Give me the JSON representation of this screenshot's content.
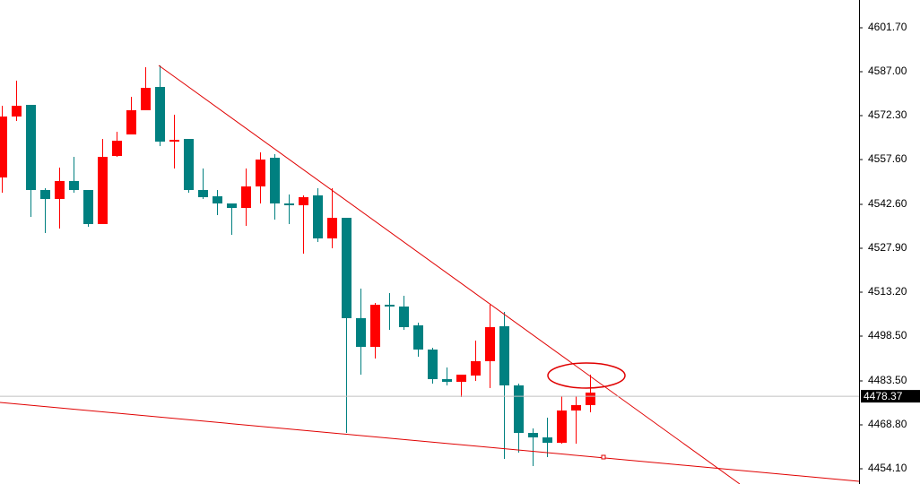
{
  "chart_data": {
    "type": "candlestick",
    "ylim": [
      4449.0,
      4611.0
    ],
    "yticks": [
      {
        "value": 4601.7,
        "label": "4601.70"
      },
      {
        "value": 4587.0,
        "label": "4587.00"
      },
      {
        "value": 4572.3,
        "label": "4572.30"
      },
      {
        "value": 4557.6,
        "label": "4557.60"
      },
      {
        "value": 4542.6,
        "label": "4542.60"
      },
      {
        "value": 4527.9,
        "label": "4527.90"
      },
      {
        "value": 4513.2,
        "label": "4513.20"
      },
      {
        "value": 4498.5,
        "label": "4498.50"
      },
      {
        "value": 4483.5,
        "label": "4483.50"
      },
      {
        "value": 4468.8,
        "label": "4468.80"
      },
      {
        "value": 4454.1,
        "label": "4454.10"
      }
    ],
    "up_color": "#ff0000",
    "down_color": "#008080",
    "current_price": 4478.37,
    "open": [
      4551.6,
      4572.0,
      4575.9,
      4547.4,
      4544.4,
      4550.4,
      4547.4,
      4536.0,
      4558.8,
      4566.0,
      4574.1,
      4581.9,
      4563.6,
      4564.5,
      4547.4,
      4545.3,
      4542.9,
      4541.4,
      4548.6,
      4558.2,
      4542.9,
      4542.3,
      4545.6,
      4531.2,
      4538.1,
      4504.5,
      4494.9,
      4509.0,
      4508.4,
      4502.1,
      4494.0,
      4484.1,
      4483.2,
      4485.3,
      4490.1,
      4501.8,
      4482.0,
      4466.1,
      4464.6,
      4462.8,
      4473.6,
      4475.4
    ],
    "high": [
      4575.6,
      4584.0,
      4575.9,
      4548.0,
      4554.9,
      4558.5,
      4547.4,
      4564.5,
      4566.9,
      4578.6,
      4588.5,
      4589.1,
      4572.6,
      4564.5,
      4554.6,
      4547.4,
      4542.9,
      4554.6,
      4560.0,
      4559.4,
      4545.9,
      4545.6,
      4548.0,
      4548.0,
      4538.1,
      4514.4,
      4509.6,
      4512.9,
      4512.0,
      4503.0,
      4494.6,
      4488.0,
      4485.6,
      4497.0,
      4509.0,
      4506.6,
      4482.6,
      4467.6,
      4471.2,
      4478.4,
      4478.4,
      4485.6
    ],
    "low": [
      4546.5,
      4570.5,
      4538.4,
      4533.0,
      4534.5,
      4546.5,
      4535.1,
      4536.0,
      4558.5,
      4566.0,
      4574.1,
      4562.1,
      4554.6,
      4546.5,
      4544.4,
      4539.0,
      4532.4,
      4535.4,
      4542.9,
      4537.5,
      4536.0,
      4526.1,
      4530.0,
      4527.9,
      4466.1,
      4485.6,
      4491.0,
      4500.6,
      4500.6,
      4491.6,
      4482.6,
      4482.0,
      4478.1,
      4483.5,
      4481.1,
      4457.4,
      4459.5,
      4455.0,
      4458.0,
      4462.5,
      4462.5,
      4473.0
    ],
    "close": [
      4572.0,
      4575.6,
      4547.4,
      4544.4,
      4550.4,
      4547.4,
      4536.0,
      4558.5,
      4563.9,
      4574.1,
      4581.6,
      4563.6,
      4564.2,
      4547.4,
      4545.0,
      4542.9,
      4541.4,
      4548.6,
      4557.6,
      4542.9,
      4542.3,
      4545.0,
      4531.2,
      4538.1,
      4504.5,
      4494.9,
      4509.0,
      4508.4,
      4501.5,
      4494.0,
      4484.1,
      4483.2,
      4485.6,
      4490.1,
      4501.5,
      4482.0,
      4466.1,
      4464.6,
      4462.8,
      4473.6,
      4475.4,
      4479.6
    ]
  }
}
